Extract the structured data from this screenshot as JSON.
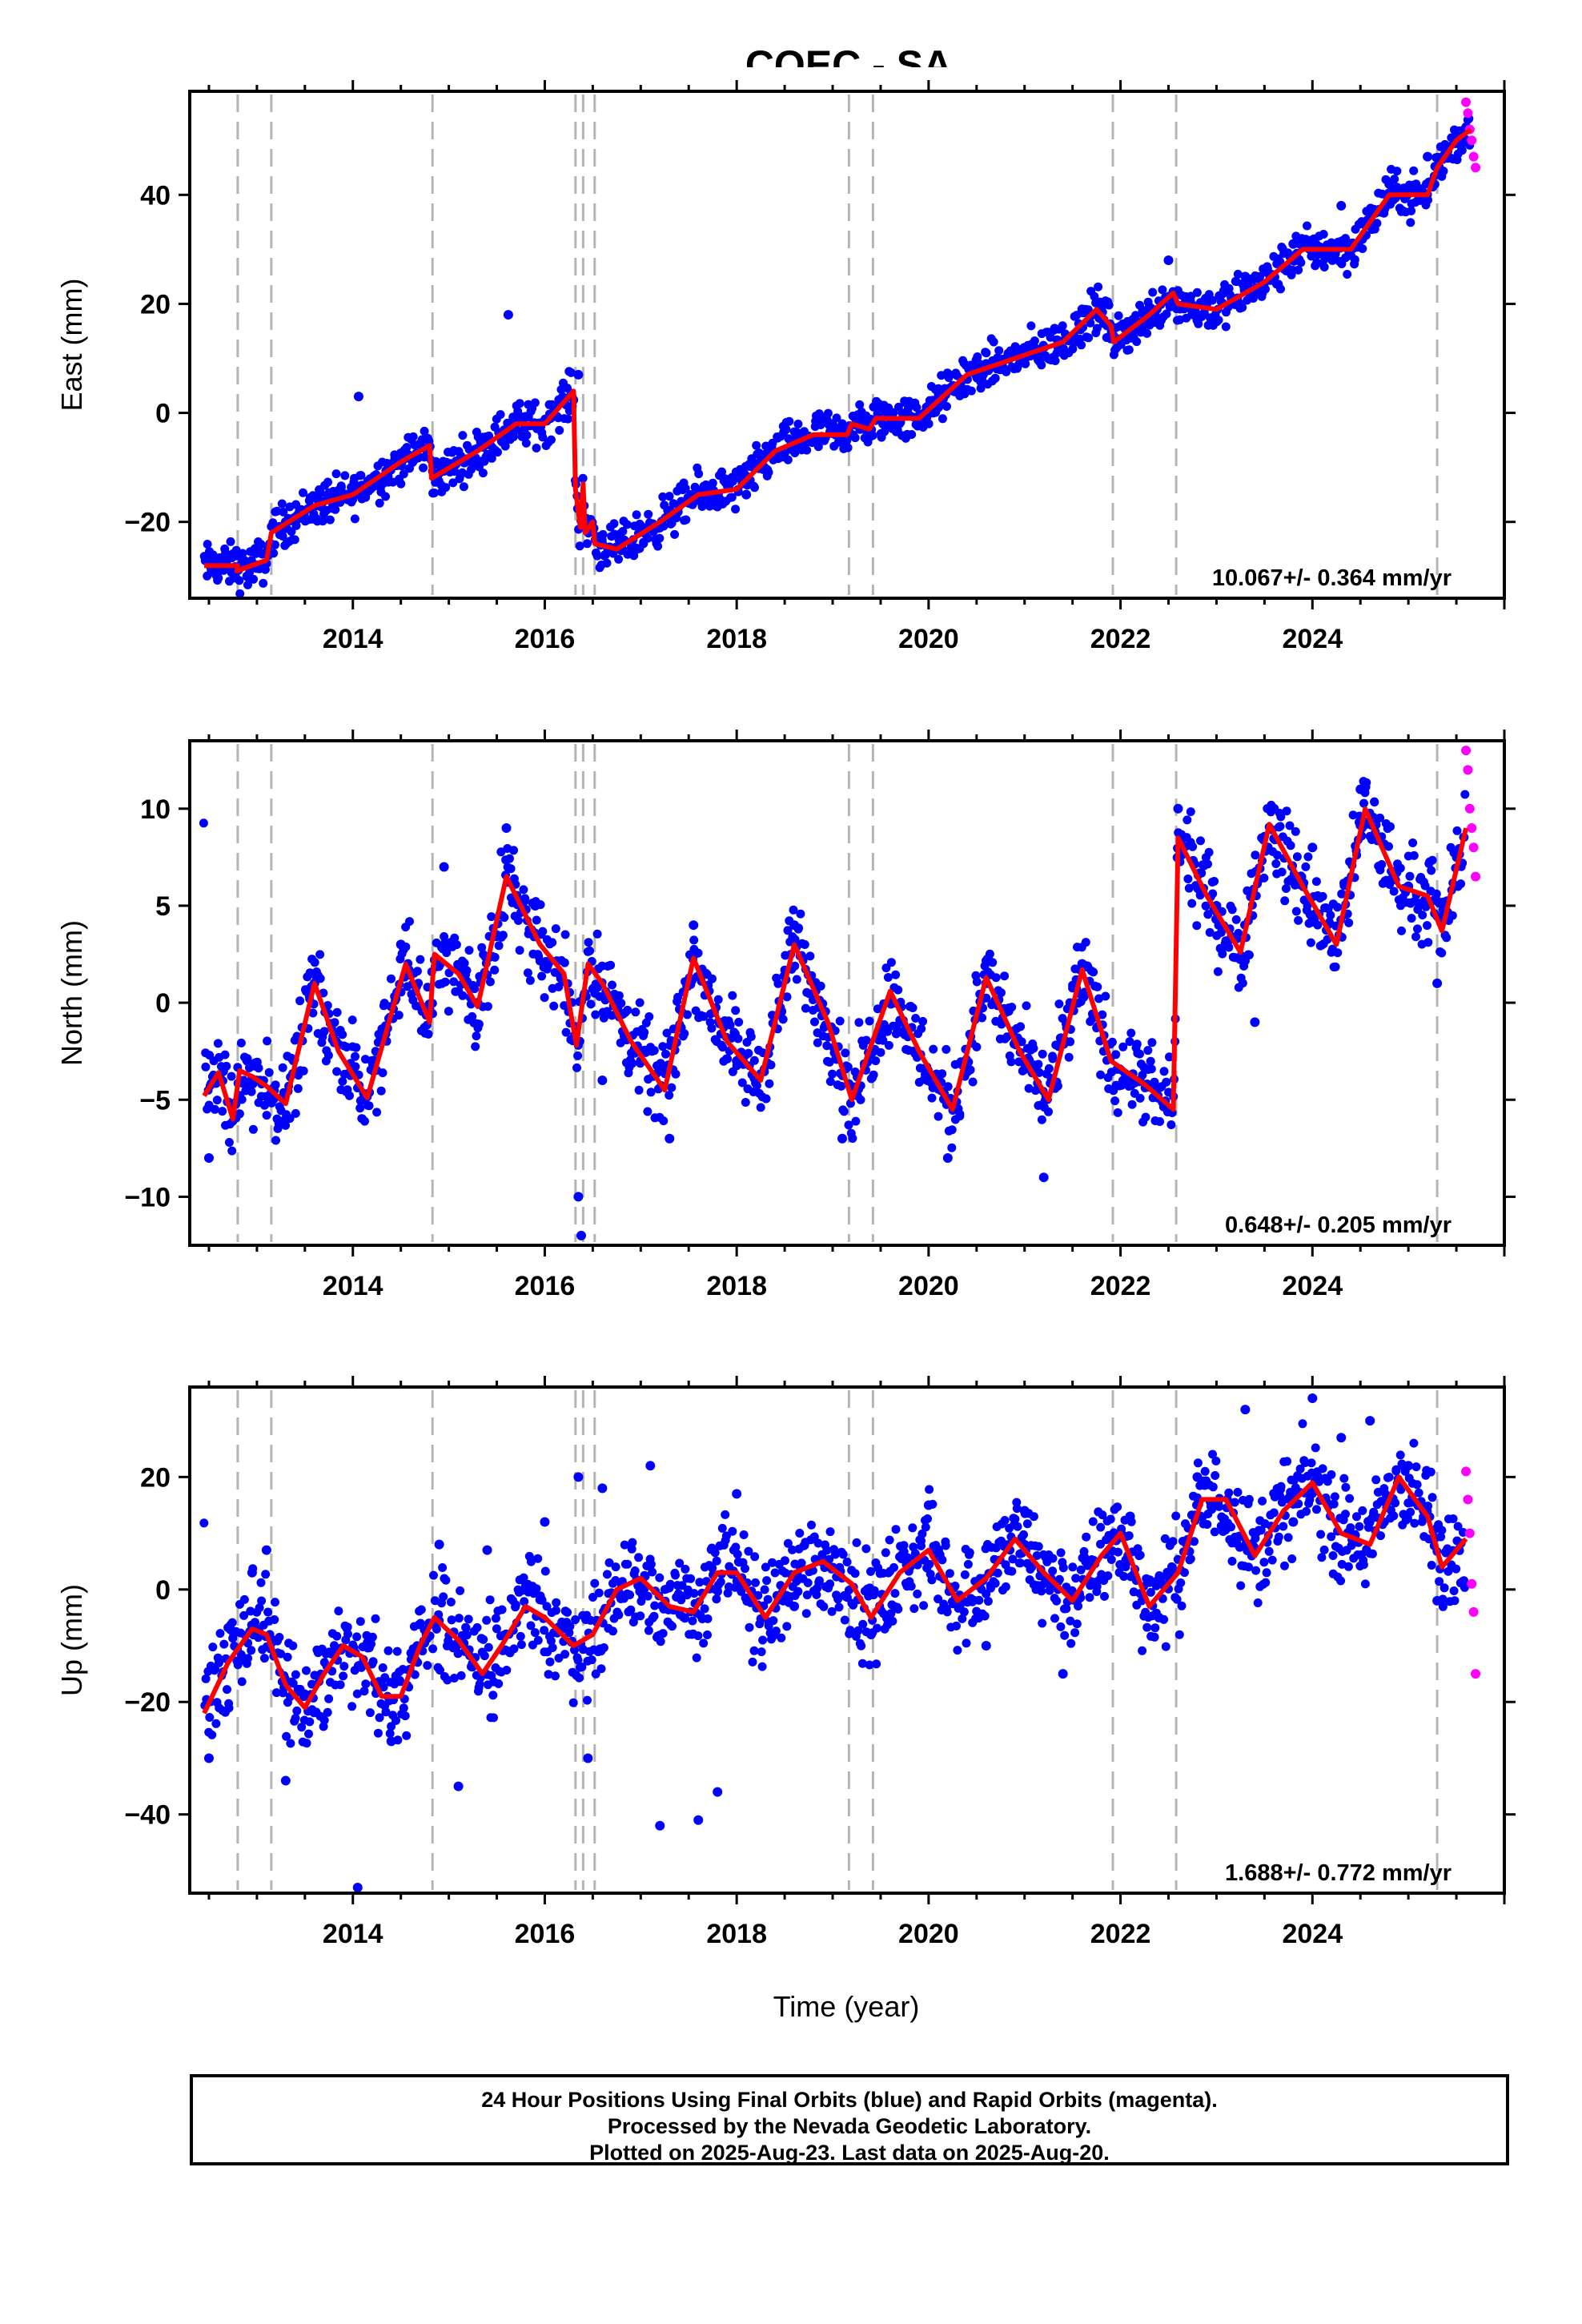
{
  "chart_data": {
    "type": "scatter",
    "title": "COEC - SA",
    "xlabel": "Time (year)",
    "x_range": [
      2012.3,
      2026.0
    ],
    "x_ticks": [
      2014,
      2016,
      2018,
      2020,
      2022,
      2024
    ],
    "x_tick_labels": [
      "2014",
      "2016",
      "2018",
      "2020",
      "2022",
      "2024"
    ],
    "equipment_change_lines": [
      2012.8,
      2013.15,
      2014.83,
      2016.32,
      2016.4,
      2016.52,
      2019.17,
      2019.42,
      2021.92,
      2022.58,
      2025.3
    ],
    "series_styles": {
      "final_orbits": "#0000ff",
      "rapid_orbits": "#ff00ff",
      "model_fit": "#ff0000",
      "break_lines": "#b4b4b4"
    },
    "panels": [
      {
        "ylabel": "East (mm)",
        "ylim": [
          -34,
          59
        ],
        "y_ticks": [
          -20,
          0,
          20,
          40
        ],
        "y_tick_labels": [
          "−20",
          "0",
          "20",
          "40"
        ],
        "rate": "10.067+/- 0.364 mm/yr",
        "model_fit": {
          "x": [
            2012.45,
            2012.8,
            2012.79,
            2013.1,
            2013.15,
            2013.6,
            2014.0,
            2014.5,
            2014.8,
            2014.82,
            2015.3,
            2015.7,
            2016.0,
            2016.3,
            2016.32,
            2016.37,
            2016.4,
            2016.42,
            2016.5,
            2016.52,
            2016.75,
            2017.2,
            2017.6,
            2018.0,
            2018.4,
            2018.8,
            2019.15,
            2019.2,
            2019.38,
            2019.45,
            2019.9,
            2020.4,
            2020.9,
            2021.4,
            2021.75,
            2021.9,
            2021.93,
            2022.3,
            2022.55,
            2022.6,
            2023.0,
            2023.5,
            2023.9,
            2024.4,
            2024.8,
            2025.2,
            2025.3,
            2025.5,
            2025.65
          ],
          "y": [
            -28,
            -28,
            -29,
            -27,
            -22,
            -17,
            -15,
            -9,
            -6,
            -12,
            -7,
            -2,
            -2,
            4,
            -14,
            -21,
            -13,
            -22,
            -20,
            -24,
            -25,
            -20,
            -15,
            -14,
            -7,
            -4,
            -4,
            -2,
            -3,
            -1,
            -1,
            7,
            10,
            13,
            19,
            16,
            13,
            18,
            22,
            20,
            19,
            24,
            30,
            30,
            40,
            40,
            45,
            50,
            52
          ]
        },
        "scatter": {
          "x": [
            2012.5,
            2012.9,
            2013.3,
            2013.8,
            2014.06,
            2014.4,
            2014.9,
            2015.4,
            2015.62,
            2016.1,
            2016.35,
            2016.6,
            2017.1,
            2017.6,
            2018.1,
            2018.6,
            2019.1,
            2019.6,
            2020.1,
            2020.6,
            2021.1,
            2021.6,
            2022.1,
            2022.5,
            2022.8,
            2023.3,
            2023.8,
            2024.3,
            2024.8,
            2025.2
          ],
          "y": [
            -27,
            -30,
            -20,
            -16,
            3,
            -10,
            -11,
            -5,
            18,
            1,
            7,
            -24,
            -21,
            -15,
            -15,
            -5,
            -3,
            -1,
            1,
            9,
            12,
            19,
            16,
            28,
            17,
            25,
            31,
            38,
            42,
            47
          ]
        },
        "rapid_scatter": {
          "x": [
            2025.6,
            2025.62,
            2025.64,
            2025.66,
            2025.68,
            2025.7
          ],
          "y": [
            57,
            55,
            52,
            50,
            47,
            45
          ]
        }
      },
      {
        "ylabel": "North (mm)",
        "ylim": [
          -12.5,
          13.5
        ],
        "y_ticks": [
          -10,
          -5,
          0,
          5,
          10
        ],
        "y_tick_labels": [
          "−10",
          "−5",
          "0",
          "5",
          "10"
        ],
        "rate": "0.648+/- 0.205 mm/yr",
        "model_fit": {
          "x": [
            2012.45,
            2012.6,
            2012.75,
            2012.82,
            2012.95,
            2013.1,
            2013.3,
            2013.6,
            2013.85,
            2014.15,
            2014.55,
            2014.8,
            2014.85,
            2015.1,
            2015.3,
            2015.6,
            2015.95,
            2016.2,
            2016.33,
            2016.45,
            2016.6,
            2016.9,
            2017.25,
            2017.55,
            2017.9,
            2018.25,
            2018.6,
            2018.95,
            2019.2,
            2019.6,
            2019.9,
            2020.25,
            2020.6,
            2020.95,
            2021.25,
            2021.6,
            2021.9,
            2022.25,
            2022.55,
            2022.6,
            2022.9,
            2023.25,
            2023.55,
            2023.9,
            2024.25,
            2024.55,
            2024.9,
            2025.2,
            2025.35,
            2025.6
          ],
          "y": [
            -4.8,
            -3.6,
            -6.0,
            -3.5,
            -3.8,
            -4.3,
            -5.2,
            1.0,
            -2.5,
            -4.9,
            2.0,
            -1.0,
            2.5,
            1.5,
            -0.2,
            6.5,
            3.0,
            1.5,
            -2.2,
            2.0,
            1.0,
            -2.0,
            -4.5,
            2.3,
            -2.0,
            -4.0,
            3.0,
            -1.0,
            -5.0,
            0.6,
            -2.5,
            -5.5,
            1.3,
            -2.5,
            -5.0,
            1.7,
            -3.0,
            -4.2,
            -5.5,
            8.5,
            5.5,
            2.6,
            9.2,
            6.0,
            3.0,
            10.0,
            6.0,
            5.5,
            3.7,
            9.0
          ]
        },
        "scatter": {
          "x": [
            2012.5,
            2012.9,
            2013.3,
            2013.6,
            2014.1,
            2014.5,
            2014.95,
            2015.3,
            2015.6,
            2015.9,
            2016.35,
            2016.38,
            2016.6,
            2017.0,
            2017.3,
            2017.55,
            2018.0,
            2018.6,
            2019.1,
            2019.6,
            2020.2,
            2020.6,
            2021.2,
            2021.6,
            2022.2,
            2022.6,
            2023.0,
            2023.4,
            2023.6,
            2024.0,
            2024.5,
            2025.0,
            2025.3
          ],
          "y": [
            -8,
            -3,
            -6,
            1,
            -5,
            3,
            7,
            0,
            9,
            5,
            -10,
            -12,
            -4,
            -3,
            -7,
            4,
            -3,
            4,
            -7,
            0,
            -8,
            1,
            -9,
            2,
            -4,
            10,
            5,
            -1,
            10,
            8,
            11,
            6,
            1
          ]
        },
        "rapid_scatter": {
          "x": [
            2025.6,
            2025.62,
            2025.64,
            2025.66,
            2025.68,
            2025.7
          ],
          "y": [
            13,
            12,
            10,
            9,
            8,
            6.5
          ]
        }
      },
      {
        "ylabel": "Up (mm)",
        "ylim": [
          -54,
          36
        ],
        "y_ticks": [
          -40,
          -20,
          0,
          20
        ],
        "y_tick_labels": [
          "−40",
          "−20",
          "0",
          "20"
        ],
        "rate": "1.688+/- 0.772 mm/yr",
        "model_fit": {
          "x": [
            2012.45,
            2012.7,
            2012.95,
            2013.1,
            2013.3,
            2013.5,
            2013.7,
            2013.9,
            2014.1,
            2014.3,
            2014.5,
            2014.7,
            2014.85,
            2015.1,
            2015.35,
            2015.55,
            2015.8,
            2016.0,
            2016.3,
            2016.5,
            2016.75,
            2017.0,
            2017.3,
            2017.55,
            2017.8,
            2018.0,
            2018.3,
            2018.6,
            2018.9,
            2019.2,
            2019.4,
            2019.7,
            2020.0,
            2020.3,
            2020.6,
            2020.9,
            2021.2,
            2021.5,
            2021.8,
            2022.0,
            2022.3,
            2022.6,
            2022.85,
            2023.1,
            2023.4,
            2023.7,
            2024.0,
            2024.3,
            2024.6,
            2024.9,
            2025.2,
            2025.35,
            2025.6
          ],
          "y": [
            -22,
            -13,
            -7,
            -8,
            -17,
            -21,
            -15,
            -10,
            -12,
            -19,
            -19,
            -10,
            -5,
            -9,
            -15,
            -10,
            -3,
            -5,
            -10,
            -8,
            0,
            2,
            -3,
            -4,
            3,
            3,
            -5,
            3,
            5,
            1,
            -5,
            3,
            7,
            -2,
            2,
            9,
            3,
            -2,
            6,
            10,
            -3,
            3,
            16,
            16,
            6,
            14,
            19,
            10,
            8,
            20,
            13,
            4,
            9
          ]
        },
        "scatter": {
          "x": [
            2012.5,
            2012.95,
            2013.1,
            2013.3,
            2014.05,
            2014.4,
            2014.9,
            2015.1,
            2015.4,
            2016.0,
            2016.35,
            2016.45,
            2016.6,
            2017.1,
            2017.2,
            2017.6,
            2017.8,
            2018.0,
            2018.6,
            2019.4,
            2020.0,
            2020.6,
            2021.0,
            2021.4,
            2022.1,
            2022.4,
            2022.8,
            2023.3,
            2023.8,
            2024.0,
            2024.3,
            2024.6,
            2025.0,
            2025.3
          ],
          "y": [
            -30,
            3,
            7,
            -34,
            -53,
            -27,
            8,
            -35,
            7,
            12,
            20,
            -30,
            18,
            22,
            -42,
            -41,
            -36,
            17,
            -3,
            -8,
            15,
            -10,
            14,
            -15,
            13,
            -5,
            20,
            32,
            12,
            34,
            27,
            30,
            22,
            -2
          ]
        },
        "rapid_scatter": {
          "x": [
            2025.6,
            2025.62,
            2025.64,
            2025.66,
            2025.68,
            2025.7
          ],
          "y": [
            21,
            16,
            10,
            1,
            -4,
            -15
          ]
        }
      }
    ]
  },
  "footer": {
    "line1": "24 Hour Positions Using Final Orbits (blue) and Rapid Orbits (magenta).",
    "line2": "Processed by the Nevada Geodetic Laboratory.",
    "line3": "Plotted on 2025-Aug-23. Last data on 2025-Aug-20."
  }
}
